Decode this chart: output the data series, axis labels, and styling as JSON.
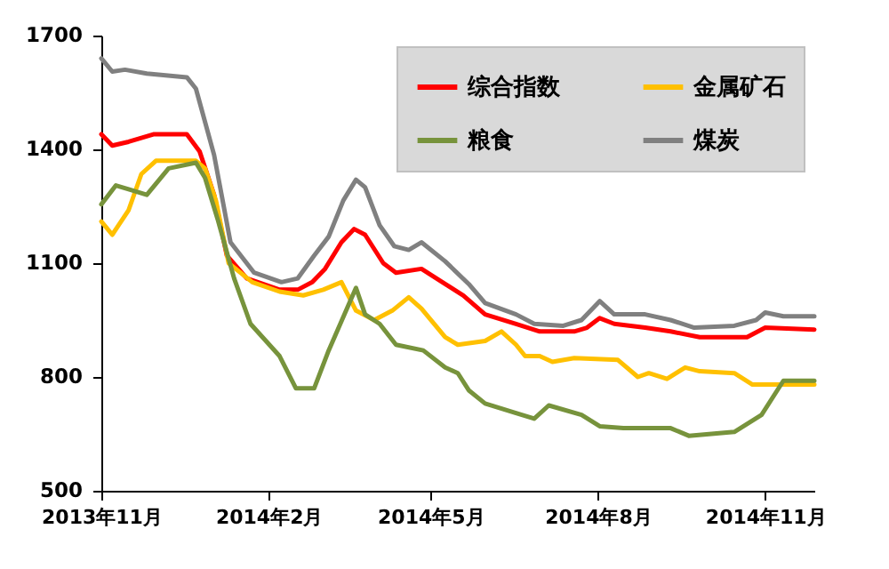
{
  "chart_data": {
    "type": "line",
    "xlim": [
      "2013-11-01",
      "2014-11-28"
    ],
    "xticks": [
      {
        "value": "2013-11-01",
        "label": "2013年11月"
      },
      {
        "value": "2014-02-01",
        "label": "2014年2月"
      },
      {
        "value": "2014-05-01",
        "label": "2014年5月"
      },
      {
        "value": "2014-08-01",
        "label": "2014年8月"
      },
      {
        "value": "2014-11-01",
        "label": "2014年11月"
      }
    ],
    "ylim": [
      500,
      1700
    ],
    "yticks": [
      500,
      800,
      1100,
      1400,
      1700
    ],
    "grid": false,
    "legend": "top right",
    "marker": "none",
    "line_style": "solid",
    "series": [
      {
        "name": "综合指数",
        "color": "#ff0000",
        "x": [
          "2013-11-01",
          "2013-11-07",
          "2013-11-16",
          "2013-11-30",
          "2013-12-18",
          "2013-12-25",
          "2014-01-02",
          "2014-01-09",
          "2014-01-20",
          "2014-02-07",
          "2014-02-17",
          "2014-02-25",
          "2014-03-04",
          "2014-03-13",
          "2014-03-20",
          "2014-03-26",
          "2014-04-05",
          "2014-04-12",
          "2014-04-26",
          "2014-05-09",
          "2014-05-19",
          "2014-05-31",
          "2014-06-17",
          "2014-06-30",
          "2014-07-19",
          "2014-07-26",
          "2014-08-02",
          "2014-08-10",
          "2014-08-27",
          "2014-09-10",
          "2014-09-26",
          "2014-10-22",
          "2014-11-01",
          "2014-11-28"
        ],
        "values": [
          1440,
          1410,
          1420,
          1440,
          1440,
          1395,
          1280,
          1120,
          1060,
          1030,
          1030,
          1050,
          1085,
          1155,
          1190,
          1175,
          1100,
          1075,
          1085,
          1045,
          1015,
          965,
          940,
          920,
          920,
          930,
          955,
          940,
          930,
          920,
          905,
          905,
          930,
          925
        ]
      },
      {
        "name": "金属矿石",
        "color": "#ffc000",
        "x": [
          "2013-11-01",
          "2013-11-07",
          "2013-11-16",
          "2013-11-23",
          "2013-12-01",
          "2013-12-23",
          "2013-12-28",
          "2014-01-03",
          "2014-01-10",
          "2014-01-23",
          "2014-02-07",
          "2014-02-20",
          "2014-03-03",
          "2014-03-13",
          "2014-03-21",
          "2014-03-31",
          "2014-04-10",
          "2014-04-19",
          "2014-04-26",
          "2014-05-09",
          "2014-05-16",
          "2014-05-31",
          "2014-06-09",
          "2014-06-17",
          "2014-06-22",
          "2014-06-30",
          "2014-07-07",
          "2014-07-19",
          "2014-08-12",
          "2014-08-23",
          "2014-08-29",
          "2014-09-08",
          "2014-09-18",
          "2014-09-26",
          "2014-10-15",
          "2014-10-25",
          "2014-11-11",
          "2014-11-28"
        ],
        "values": [
          1210,
          1175,
          1240,
          1335,
          1370,
          1370,
          1350,
          1265,
          1100,
          1050,
          1025,
          1015,
          1030,
          1050,
          975,
          950,
          975,
          1010,
          980,
          905,
          885,
          895,
          920,
          885,
          855,
          855,
          840,
          850,
          845,
          800,
          810,
          795,
          825,
          815,
          810,
          780,
          780,
          780
        ]
      },
      {
        "name": "粮食",
        "color": "#77933c",
        "x": [
          "2013-11-01",
          "2013-11-09",
          "2013-11-16",
          "2013-11-26",
          "2013-12-08",
          "2013-12-23",
          "2013-12-28",
          "2014-01-04",
          "2014-01-13",
          "2014-01-22",
          "2014-02-07",
          "2014-02-16",
          "2014-02-26",
          "2014-03-06",
          "2014-03-16",
          "2014-03-21",
          "2014-03-26",
          "2014-04-03",
          "2014-04-12",
          "2014-04-27",
          "2014-05-09",
          "2014-05-16",
          "2014-05-22",
          "2014-05-31",
          "2014-06-17",
          "2014-06-27",
          "2014-07-05",
          "2014-07-23",
          "2014-08-02",
          "2014-08-15",
          "2014-09-10",
          "2014-09-20",
          "2014-10-15",
          "2014-10-30",
          "2014-11-11",
          "2014-11-28"
        ],
        "values": [
          1255,
          1305,
          1295,
          1280,
          1350,
          1365,
          1325,
          1215,
          1060,
          940,
          855,
          770,
          770,
          870,
          980,
          1035,
          965,
          940,
          885,
          870,
          825,
          810,
          765,
          730,
          705,
          690,
          725,
          700,
          670,
          665,
          665,
          645,
          655,
          700,
          790,
          790
        ]
      },
      {
        "name": "煤炭",
        "color": "#808080",
        "x": [
          "2013-11-01",
          "2013-11-07",
          "2013-11-14",
          "2013-11-26",
          "2013-12-18",
          "2013-12-23",
          "2014-01-02",
          "2014-01-11",
          "2014-01-24",
          "2014-02-08",
          "2014-02-17",
          "2014-02-26",
          "2014-03-06",
          "2014-03-14",
          "2014-03-21",
          "2014-03-26",
          "2014-04-03",
          "2014-04-11",
          "2014-04-19",
          "2014-04-26",
          "2014-05-09",
          "2014-05-22",
          "2014-05-31",
          "2014-06-17",
          "2014-06-27",
          "2014-07-13",
          "2014-07-23",
          "2014-08-02",
          "2014-08-10",
          "2014-08-27",
          "2014-09-10",
          "2014-09-23",
          "2014-10-15",
          "2014-10-27",
          "2014-11-01",
          "2014-11-11",
          "2014-11-28"
        ],
        "values": [
          1640,
          1605,
          1610,
          1600,
          1590,
          1560,
          1385,
          1155,
          1075,
          1050,
          1060,
          1120,
          1170,
          1265,
          1320,
          1300,
          1200,
          1145,
          1135,
          1155,
          1105,
          1045,
          995,
          965,
          940,
          935,
          950,
          1000,
          965,
          965,
          950,
          930,
          935,
          950,
          970,
          960,
          960
        ]
      }
    ]
  }
}
